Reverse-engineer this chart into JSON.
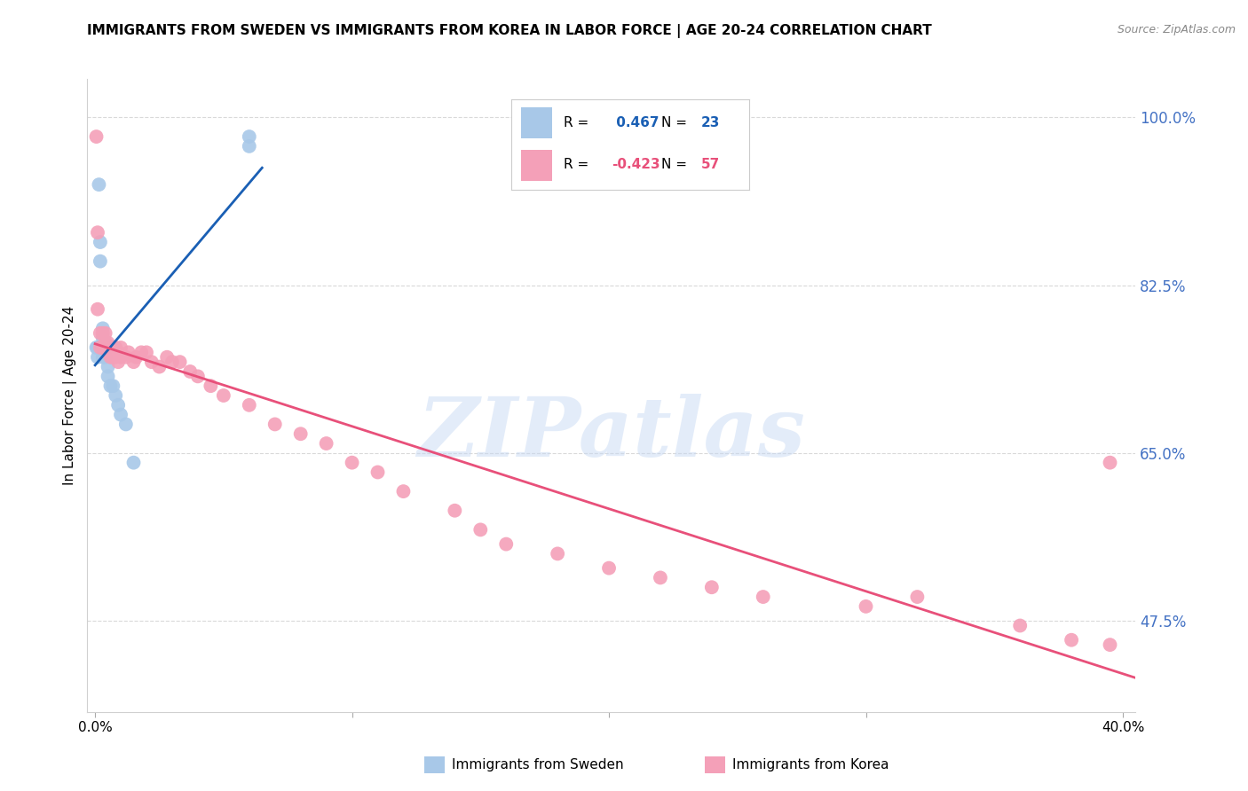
{
  "title": "IMMIGRANTS FROM SWEDEN VS IMMIGRANTS FROM KOREA IN LABOR FORCE | AGE 20-24 CORRELATION CHART",
  "source": "Source: ZipAtlas.com",
  "ylabel": "In Labor Force | Age 20-24",
  "xlim": [
    -0.003,
    0.405
  ],
  "ylim": [
    0.38,
    1.04
  ],
  "yticks": [
    0.475,
    0.65,
    0.825,
    1.0
  ],
  "ytick_labels": [
    "47.5%",
    "65.0%",
    "82.5%",
    "100.0%"
  ],
  "sweden_color": "#a8c8e8",
  "korea_color": "#f4a0b8",
  "sweden_line_color": "#1a5fb4",
  "korea_line_color": "#e8507a",
  "sweden_R": 0.467,
  "sweden_N": 23,
  "korea_R": -0.423,
  "korea_N": 57,
  "watermark": "ZIPatlas",
  "legend_R_color": "#1a5fb4",
  "legend_R2_color": "#e8507a",
  "sweden_x": [
    0.0005,
    0.001,
    0.001,
    0.0015,
    0.002,
    0.002,
    0.003,
    0.003,
    0.003,
    0.003,
    0.004,
    0.004,
    0.005,
    0.005,
    0.006,
    0.007,
    0.008,
    0.009,
    0.01,
    0.012,
    0.015,
    0.06,
    0.06
  ],
  "sweden_y": [
    0.76,
    0.76,
    0.75,
    0.93,
    0.87,
    0.85,
    0.78,
    0.77,
    0.76,
    0.75,
    0.76,
    0.75,
    0.74,
    0.73,
    0.72,
    0.72,
    0.71,
    0.7,
    0.69,
    0.68,
    0.64,
    0.98,
    0.97
  ],
  "korea_x": [
    0.0005,
    0.001,
    0.001,
    0.002,
    0.002,
    0.003,
    0.003,
    0.004,
    0.004,
    0.005,
    0.005,
    0.006,
    0.006,
    0.007,
    0.007,
    0.008,
    0.008,
    0.009,
    0.009,
    0.01,
    0.01,
    0.012,
    0.013,
    0.015,
    0.016,
    0.018,
    0.02,
    0.022,
    0.025,
    0.028,
    0.03,
    0.033,
    0.037,
    0.04,
    0.045,
    0.05,
    0.06,
    0.07,
    0.08,
    0.09,
    0.1,
    0.11,
    0.12,
    0.14,
    0.15,
    0.16,
    0.18,
    0.2,
    0.22,
    0.24,
    0.26,
    0.3,
    0.32,
    0.36,
    0.38,
    0.395,
    0.395
  ],
  "korea_y": [
    0.98,
    0.88,
    0.8,
    0.775,
    0.76,
    0.775,
    0.76,
    0.775,
    0.765,
    0.765,
    0.755,
    0.76,
    0.75,
    0.76,
    0.75,
    0.76,
    0.75,
    0.755,
    0.745,
    0.76,
    0.75,
    0.75,
    0.755,
    0.745,
    0.75,
    0.755,
    0.755,
    0.745,
    0.74,
    0.75,
    0.745,
    0.745,
    0.735,
    0.73,
    0.72,
    0.71,
    0.7,
    0.68,
    0.67,
    0.66,
    0.64,
    0.63,
    0.61,
    0.59,
    0.57,
    0.555,
    0.545,
    0.53,
    0.52,
    0.51,
    0.5,
    0.49,
    0.5,
    0.47,
    0.455,
    0.45,
    0.64
  ]
}
